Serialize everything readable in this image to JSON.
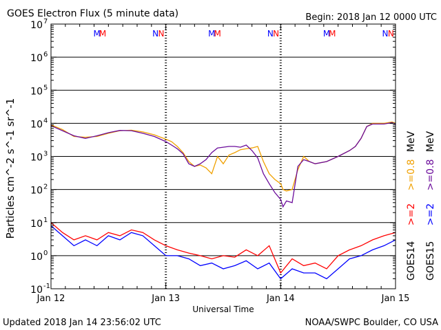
{
  "header": {
    "title": "GOES Electron Flux (5 minute data)",
    "begin": "Begin: 2018 Jan 12 0000 UTC"
  },
  "footer": {
    "updated": "Updated 2018 Jan 14 23:56:02 UTC",
    "source": "NOAA/SWPC Boulder, CO USA"
  },
  "legend": {
    "goes14": "GOES14",
    "goes15": "GOES15",
    "g14_low": ">=2",
    "g14_high": ">=0.8",
    "g15_low": ">=2",
    "g15_high": ">=0.8",
    "unit": "MeV"
  },
  "colors": {
    "goes14_low": "#ff0000",
    "goes15_low": "#0000ff",
    "goes14_high": "#f0a000",
    "goes15_high": "#6a0a9a"
  },
  "chart_data": {
    "type": "line",
    "xlabel": "Universal Time",
    "ylabel": "Particles cm^-2 s^-1 sr^-1",
    "yscale": "log",
    "ylim": [
      0.1,
      10000000
    ],
    "xlim": [
      0,
      3
    ],
    "x_ticks": [
      {
        "pos": 0,
        "label": "Jan 12"
      },
      {
        "pos": 1,
        "label": "Jan 13"
      },
      {
        "pos": 2,
        "label": "Jan 14"
      },
      {
        "pos": 3,
        "label": "Jan 15"
      }
    ],
    "y_ticks": [
      {
        "exp": "-1"
      },
      {
        "exp": "0"
      },
      {
        "exp": "1"
      },
      {
        "exp": "2"
      },
      {
        "exp": "3"
      },
      {
        "exp": "4"
      },
      {
        "exp": "5"
      },
      {
        "exp": "6"
      },
      {
        "exp": "7"
      }
    ],
    "markers": [
      {
        "x": 0.4,
        "letter": "M",
        "color": "#0000ff"
      },
      {
        "x": 0.45,
        "letter": "M",
        "color": "#ff0000"
      },
      {
        "x": 0.91,
        "letter": "N",
        "color": "#0000ff"
      },
      {
        "x": 0.96,
        "letter": "N",
        "color": "#ff0000"
      },
      {
        "x": 1.4,
        "letter": "M",
        "color": "#0000ff"
      },
      {
        "x": 1.45,
        "letter": "M",
        "color": "#ff0000"
      },
      {
        "x": 1.91,
        "letter": "N",
        "color": "#0000ff"
      },
      {
        "x": 1.96,
        "letter": "N",
        "color": "#ff0000"
      },
      {
        "x": 2.4,
        "letter": "M",
        "color": "#0000ff"
      },
      {
        "x": 2.45,
        "letter": "M",
        "color": "#ff0000"
      },
      {
        "x": 2.91,
        "letter": "N",
        "color": "#0000ff"
      },
      {
        "x": 2.96,
        "letter": "N",
        "color": "#ff0000"
      }
    ],
    "series": [
      {
        "name": "GOES14 >=0.8 MeV",
        "color": "#f0a000",
        "x": [
          0,
          0.1,
          0.2,
          0.3,
          0.4,
          0.5,
          0.6,
          0.7,
          0.8,
          0.9,
          1.0,
          1.05,
          1.1,
          1.15,
          1.2,
          1.25,
          1.3,
          1.35,
          1.4,
          1.45,
          1.5,
          1.55,
          1.6,
          1.65,
          1.7,
          1.75,
          1.8,
          1.85,
          1.9,
          1.95,
          2.0,
          2.02,
          2.05,
          2.1,
          2.15,
          2.2,
          2.25,
          2.3,
          2.4,
          2.5,
          2.6,
          2.65,
          2.7,
          2.75,
          2.8,
          2.9,
          2.97,
          3.0
        ],
        "y": [
          9000,
          6500,
          4000,
          3800,
          4000,
          5000,
          6000,
          6200,
          5500,
          4500,
          3300,
          2800,
          2000,
          1300,
          700,
          500,
          550,
          450,
          300,
          1000,
          600,
          1100,
          1300,
          1600,
          1700,
          1800,
          2000,
          700,
          300,
          200,
          150,
          100,
          90,
          100,
          400,
          1000,
          700,
          600,
          700,
          1000,
          1500,
          2000,
          3500,
          8000,
          10000,
          10000,
          11000,
          10000
        ]
      },
      {
        "name": "GOES15 >=0.8 MeV",
        "color": "#6a0a9a",
        "x": [
          0,
          0.1,
          0.2,
          0.3,
          0.4,
          0.5,
          0.6,
          0.7,
          0.8,
          0.9,
          1.0,
          1.05,
          1.1,
          1.15,
          1.2,
          1.25,
          1.3,
          1.35,
          1.4,
          1.45,
          1.5,
          1.55,
          1.6,
          1.65,
          1.7,
          1.75,
          1.8,
          1.85,
          1.9,
          1.95,
          2.0,
          2.02,
          2.05,
          2.1,
          2.15,
          2.2,
          2.25,
          2.3,
          2.4,
          2.5,
          2.6,
          2.65,
          2.7,
          2.75,
          2.8,
          2.9,
          2.97,
          3.0
        ],
        "y": [
          8500,
          6000,
          4200,
          3500,
          4200,
          5200,
          6100,
          6000,
          5000,
          4000,
          2800,
          2200,
          1700,
          1200,
          600,
          500,
          600,
          800,
          1300,
          1800,
          1900,
          2000,
          2000,
          1900,
          2200,
          1500,
          900,
          300,
          150,
          80,
          50,
          30,
          45,
          40,
          500,
          800,
          700,
          600,
          700,
          1000,
          1500,
          2000,
          3500,
          8000,
          9500,
          9500,
          10500,
          9500
        ]
      },
      {
        "name": "GOES14 >=2 MeV",
        "color": "#ff0000",
        "x": [
          0,
          0.1,
          0.2,
          0.3,
          0.4,
          0.5,
          0.6,
          0.7,
          0.8,
          0.9,
          1.0,
          1.1,
          1.2,
          1.3,
          1.4,
          1.5,
          1.6,
          1.7,
          1.8,
          1.9,
          2.0,
          2.1,
          2.2,
          2.3,
          2.4,
          2.5,
          2.6,
          2.7,
          2.8,
          2.9,
          3.0
        ],
        "y": [
          10,
          5,
          3,
          4,
          3,
          5,
          4,
          6,
          5,
          3,
          2,
          1.5,
          1.2,
          1.0,
          0.8,
          1.0,
          0.9,
          1.5,
          1.0,
          2.0,
          0.3,
          0.8,
          0.5,
          0.6,
          0.4,
          1.0,
          1.5,
          2.0,
          3.0,
          4.0,
          5.0
        ]
      },
      {
        "name": "GOES15 >=2 MeV",
        "color": "#0000ff",
        "x": [
          0,
          0.1,
          0.2,
          0.3,
          0.4,
          0.5,
          0.6,
          0.7,
          0.8,
          0.9,
          1.0,
          1.1,
          1.2,
          1.3,
          1.4,
          1.5,
          1.6,
          1.7,
          1.8,
          1.9,
          2.0,
          2.1,
          2.2,
          2.3,
          2.4,
          2.5,
          2.6,
          2.7,
          2.8,
          2.9,
          3.0
        ],
        "y": [
          8,
          4,
          2,
          3,
          2,
          4,
          3,
          5,
          4,
          2,
          1,
          1.0,
          0.8,
          0.5,
          0.6,
          0.4,
          0.5,
          0.7,
          0.4,
          0.6,
          0.2,
          0.4,
          0.3,
          0.3,
          0.2,
          0.4,
          0.8,
          1.0,
          1.5,
          2.0,
          3.0
        ]
      }
    ]
  }
}
